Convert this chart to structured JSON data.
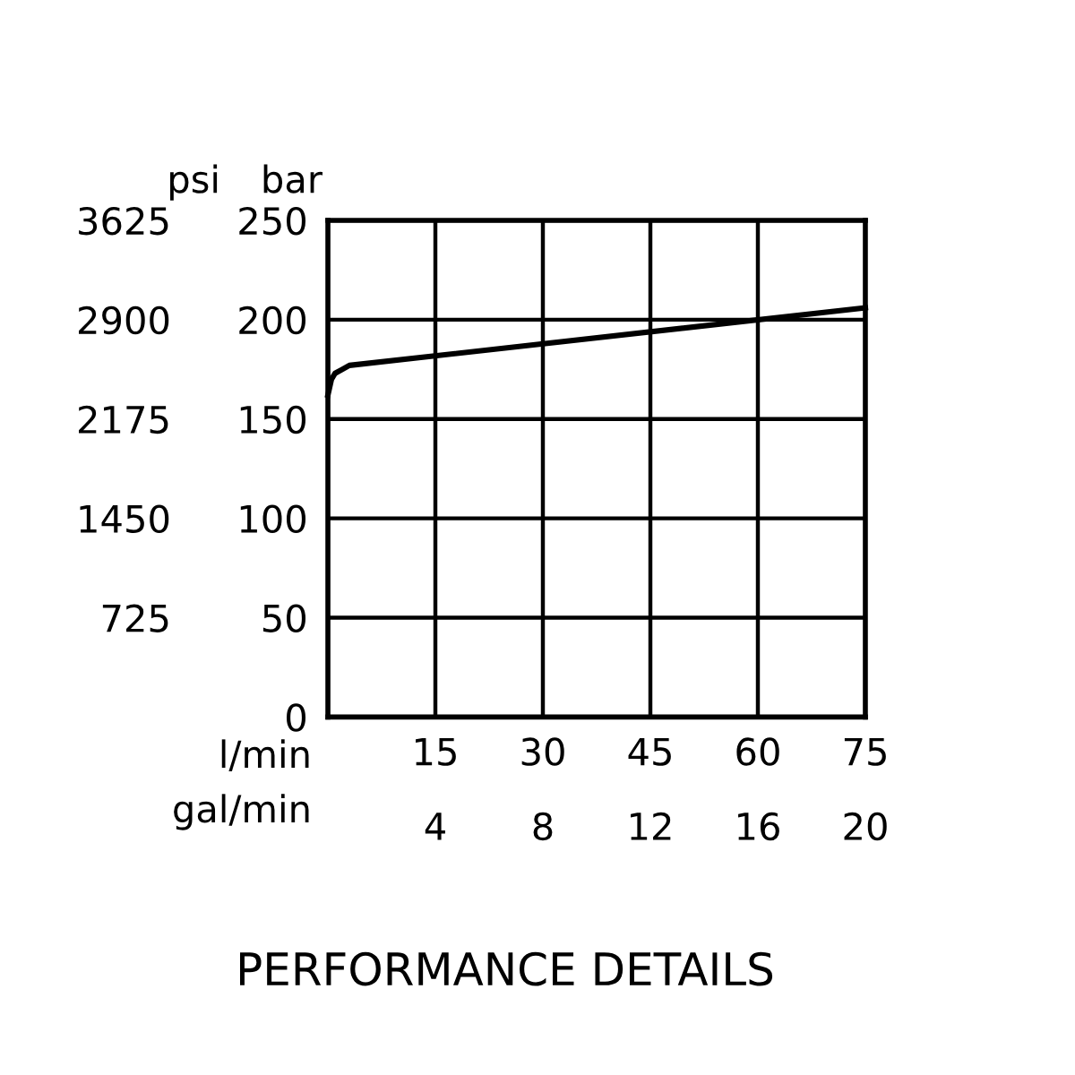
{
  "chart_data": {
    "type": "line",
    "title": "PERFORMANCE DETAILS",
    "xlabel": "l/min",
    "x2label": "gal/min",
    "ylabel": "bar",
    "y2label": "psi",
    "xlim": [
      0,
      75
    ],
    "xticks": [
      {
        "value": 0,
        "label": null
      },
      15,
      30,
      45,
      60,
      75
    ],
    "x2lim": [
      0,
      20
    ],
    "x2ticks": [
      {
        "value": 0,
        "label": null
      },
      4,
      8,
      12,
      16,
      20
    ],
    "ylim": [
      0,
      250
    ],
    "yticks": [
      0,
      50,
      100,
      150,
      200,
      250
    ],
    "y2lim": [
      0,
      3625
    ],
    "y2ticks": [
      725,
      1450,
      2175,
      2900,
      3625
    ],
    "grid": true,
    "line_style": "solid",
    "marker": "none",
    "series": [
      {
        "color": "#000000",
        "x": [
          0,
          0.5,
          1,
          2,
          3,
          75
        ],
        "values": [
          162,
          170,
          173,
          175,
          177,
          206
        ]
      }
    ]
  }
}
